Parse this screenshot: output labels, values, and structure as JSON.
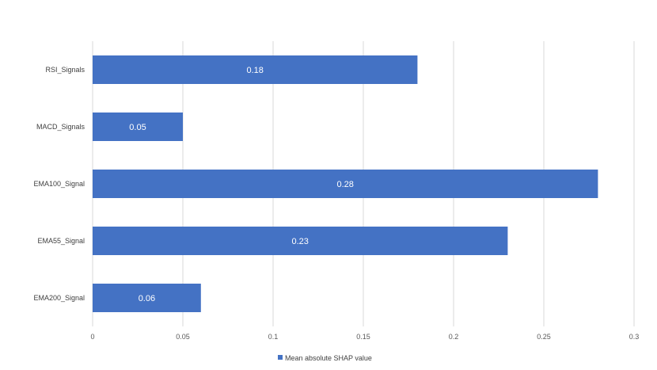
{
  "chart_data": {
    "type": "bar",
    "orientation": "horizontal",
    "categories": [
      "RSI_Signals",
      "MACD_Signals",
      "EMA100_Signal",
      "EMA55_Signal",
      "EMA200_Signal"
    ],
    "series": [
      {
        "name": "Mean absolute SHAP value",
        "values": [
          0.18,
          0.05,
          0.28,
          0.23,
          0.06
        ],
        "color": "#4472C4"
      }
    ],
    "data_labels": [
      "0.18",
      "0.05",
      "0.28",
      "0.23",
      "0.06"
    ],
    "xlim": [
      0,
      0.3
    ],
    "x_ticks": [
      0,
      0.05,
      0.1,
      0.15,
      0.2,
      0.25,
      0.3
    ],
    "x_tick_labels": [
      "0",
      "0.05",
      "0.1",
      "0.15",
      "0.2",
      "0.25",
      "0.3"
    ],
    "title": "",
    "xlabel": "",
    "ylabel": "",
    "grid": true,
    "legend_position": "bottom",
    "gridline_color": "#D9D9D9"
  }
}
